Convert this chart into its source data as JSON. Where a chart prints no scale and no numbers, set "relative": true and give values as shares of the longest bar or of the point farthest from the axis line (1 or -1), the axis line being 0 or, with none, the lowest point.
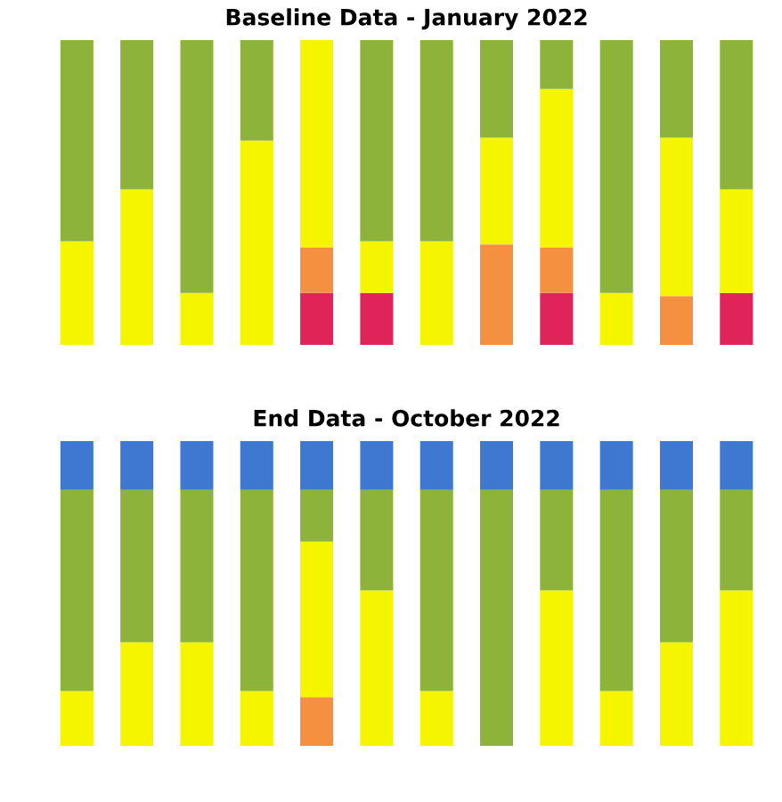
{
  "chart_data": [
    {
      "type": "bar",
      "title": "Baseline Data - January 2022",
      "relative": true,
      "stacked": true,
      "categories": [
        null,
        null,
        null,
        null,
        null,
        null,
        null,
        null,
        null,
        null,
        null,
        null
      ],
      "series": [
        {
          "color": "#e0245a",
          "values": [
            0,
            0,
            0,
            0,
            0.17,
            0.17,
            0,
            0,
            0.17,
            0,
            0,
            0.17
          ]
        },
        {
          "color": "#f59040",
          "values": [
            0,
            0,
            0,
            0,
            0.15,
            0,
            0,
            0.33,
            0.15,
            0,
            0.16,
            0
          ]
        },
        {
          "color": "#f5f500",
          "values": [
            0.34,
            0.51,
            0.17,
            0.67,
            0.68,
            0.17,
            0.34,
            0.35,
            0.52,
            0.17,
            0.52,
            0.34
          ]
        },
        {
          "color": "#8db33a",
          "values": [
            0.66,
            0.49,
            0.83,
            0.33,
            0,
            0.66,
            0.66,
            0.32,
            0.16,
            0.83,
            0.32,
            0.49
          ]
        }
      ]
    },
    {
      "type": "bar",
      "title": "End Data - October 2022",
      "relative": true,
      "stacked": true,
      "categories": [
        null,
        null,
        null,
        null,
        null,
        null,
        null,
        null,
        null,
        null,
        null,
        null
      ],
      "series": [
        {
          "color": "#f59040",
          "values": [
            0,
            0,
            0,
            0,
            0.16,
            0,
            0,
            0,
            0,
            0,
            0,
            0
          ]
        },
        {
          "color": "#f5f500",
          "values": [
            0.18,
            0.34,
            0.34,
            0.18,
            0.51,
            0.51,
            0.18,
            0,
            0.51,
            0.18,
            0.34,
            0.51
          ]
        },
        {
          "color": "#8db33a",
          "values": [
            0.66,
            0.5,
            0.5,
            0.66,
            0.17,
            0.33,
            0.66,
            0.84,
            0.33,
            0.66,
            0.5,
            0.33
          ]
        },
        {
          "color": "#3f78d0",
          "values": [
            0.16,
            0.16,
            0.16,
            0.16,
            0.16,
            0.16,
            0.16,
            0.16,
            0.16,
            0.16,
            0.16,
            0.16
          ]
        }
      ]
    }
  ]
}
